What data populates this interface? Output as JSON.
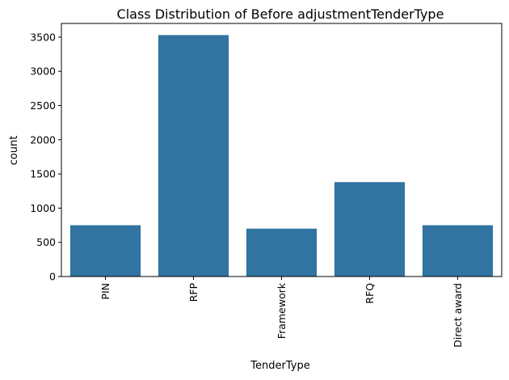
{
  "chart_data": {
    "type": "bar",
    "title": "Class Distribution of Before adjustmentTenderType",
    "xlabel": "TenderType",
    "ylabel": "count",
    "categories": [
      "PIN",
      "RFP",
      "Framework",
      "RFQ",
      "Direct award"
    ],
    "values": [
      750,
      3530,
      700,
      1380,
      750
    ],
    "ylim": [
      0,
      3700
    ],
    "yticks": [
      0,
      500,
      1000,
      1500,
      2000,
      2500,
      3000,
      3500
    ],
    "grid": false,
    "bar_color": "#3274a1"
  }
}
